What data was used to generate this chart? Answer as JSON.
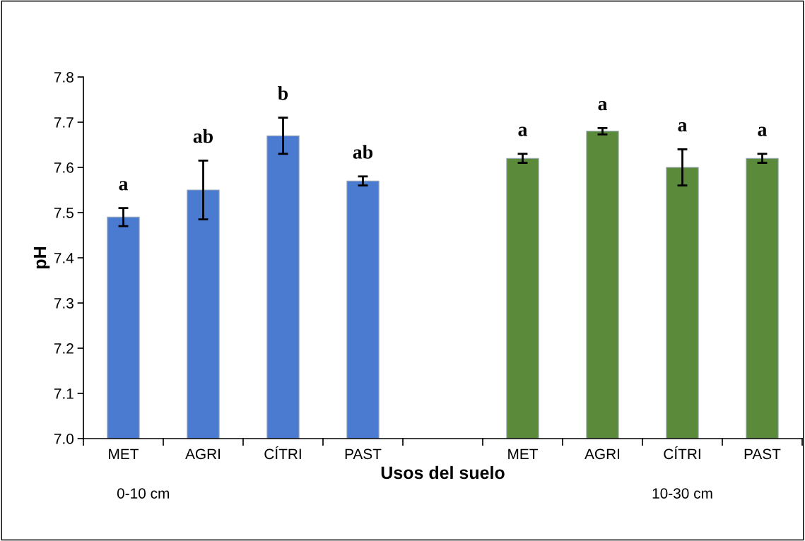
{
  "chart_data": {
    "type": "bar",
    "xlabel": "Usos del suelo",
    "ylabel": "pH",
    "categories": [
      "MET",
      "AGRI",
      "CÍTRI",
      "PAST",
      null,
      "MET",
      "AGRI",
      "CÍTRI",
      "PAST"
    ],
    "values": [
      7.49,
      7.55,
      7.67,
      7.57,
      null,
      7.62,
      7.68,
      7.6,
      7.62
    ],
    "errors": [
      0.02,
      0.065,
      0.04,
      0.01,
      null,
      0.01,
      0.007,
      0.04,
      0.01
    ],
    "colors": [
      "#4a7bd0",
      "#4a7bd0",
      "#4a7bd0",
      "#4a7bd0",
      "#4a7bd0",
      "#5a8a3a",
      "#5a8a3a",
      "#5a8a3a",
      "#5a8a3a"
    ],
    "ylim": [
      7.0,
      7.8
    ],
    "yticks": [
      {
        "value": 7.0,
        "label": "7.0"
      },
      7.1,
      7.2,
      7.3,
      7.4,
      7.5,
      7.6,
      7.7,
      7.8
    ],
    "grid": false,
    "annotations": [
      "a",
      "ab",
      "b",
      "ab",
      "a",
      "a",
      "a",
      "a",
      "0-10 cm",
      "10-30 cm"
    ]
  }
}
